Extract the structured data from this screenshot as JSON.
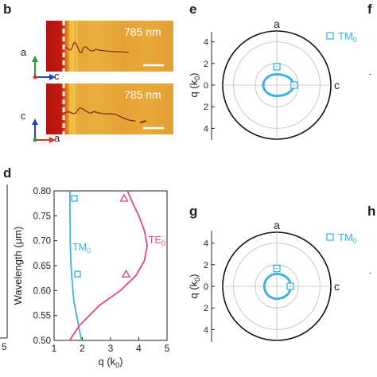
{
  "panels": {
    "b": {
      "letter": "b",
      "top_image": {
        "wavelength_label": "785 nm",
        "axis_vertical": "a",
        "axis_horizontal": "c"
      },
      "bottom_image": {
        "wavelength_label": "785 nm",
        "axis_vertical": "c",
        "axis_horizontal": "a"
      }
    },
    "d": {
      "letter": "d"
    },
    "e": {
      "letter": "e",
      "top_label": "a",
      "right_label": "c",
      "ylabel": "q (k",
      "ylabel_sub": "0",
      "ylabel_end": ")",
      "legend_main": "TM",
      "legend_sub": "0"
    },
    "f": {
      "letter": "f"
    },
    "g": {
      "letter": "g",
      "top_label": "a",
      "right_label": "c",
      "ylabel": "q (k",
      "ylabel_sub": "0",
      "ylabel_end": ")",
      "legend_main": "TM",
      "legend_sub": "0"
    },
    "h": {
      "letter": "h"
    }
  },
  "left_partial_axis": {
    "tick_label": "5"
  },
  "colors": {
    "tm0": "#3fb3e0",
    "te0": "#e0458a",
    "image_base": "#e6a33a"
  },
  "chart_data": [
    {
      "type": "line",
      "panel": "d",
      "xlabel": "q (k0)",
      "ylabel": "Wavelength (μm)",
      "xlim": [
        1,
        5
      ],
      "ylim": [
        0.5,
        0.8
      ],
      "xticks": [
        1,
        2,
        3,
        4,
        5
      ],
      "yticks": [
        0.5,
        0.55,
        0.6,
        0.65,
        0.7,
        0.75,
        0.8
      ],
      "ytick_labels": [
        "0.50",
        "0.55",
        "0.60",
        "0.65",
        "0.70",
        "0.75",
        "0.80"
      ],
      "series": [
        {
          "name": "TM0",
          "color": "#3fb3e0",
          "x": [
            1.98,
            1.9,
            1.8,
            1.7,
            1.64,
            1.6,
            1.58,
            1.57,
            1.57,
            1.56,
            1.56
          ],
          "y": [
            0.5,
            0.52,
            0.55,
            0.58,
            0.62,
            0.65,
            0.68,
            0.7,
            0.73,
            0.76,
            0.8
          ]
        },
        {
          "name": "TE0",
          "color": "#e0458a",
          "x": [
            1.55,
            1.9,
            2.6,
            3.35,
            3.9,
            4.2,
            4.3,
            4.2,
            4.0,
            3.75,
            3.6
          ],
          "y": [
            0.5,
            0.53,
            0.57,
            0.6,
            0.63,
            0.66,
            0.69,
            0.72,
            0.75,
            0.78,
            0.8
          ]
        }
      ],
      "markers": [
        {
          "series": "TM0",
          "shape": "square",
          "x": 1.72,
          "y": 0.785,
          "xerr": 0.08
        },
        {
          "series": "TM0",
          "shape": "square",
          "x": 1.83,
          "y": 0.633,
          "xerr": 0.08
        },
        {
          "series": "TE0",
          "shape": "triangle",
          "x": 3.48,
          "y": 0.785,
          "xerr": 0.06
        },
        {
          "series": "TE0",
          "shape": "triangle",
          "x": 3.55,
          "y": 0.633,
          "xerr": 0.06
        }
      ]
    },
    {
      "type": "polar",
      "panel": "e",
      "radial_ticks": [
        4,
        2,
        0,
        2,
        4
      ],
      "rmax": 5,
      "series": [
        {
          "name": "TM0",
          "color": "#3fb3e0",
          "along_a": 1.0,
          "along_c": 1.55,
          "back_c": 1.25
        }
      ],
      "markers": [
        {
          "shape": "square",
          "direction": "a",
          "q": 1.7
        },
        {
          "shape": "square",
          "direction": "c",
          "q": 1.6
        }
      ]
    },
    {
      "type": "polar",
      "panel": "g",
      "radial_ticks": [
        4,
        2,
        0,
        2,
        4
      ],
      "rmax": 5,
      "series": [
        {
          "name": "TM0",
          "color": "#3fb3e0",
          "along_a": 1.15,
          "along_c": 1.3,
          "back_c": 1.15
        }
      ],
      "markers": [
        {
          "shape": "square",
          "direction": "a",
          "q": 1.65
        },
        {
          "shape": "square",
          "direction": "c",
          "q": 1.25
        }
      ]
    }
  ]
}
